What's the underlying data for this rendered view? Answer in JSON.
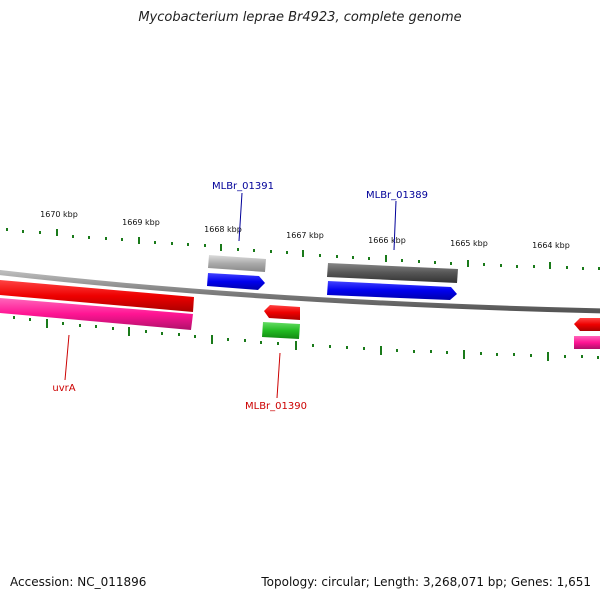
{
  "title": "Mycobacterium leprae Br4923, complete genome",
  "footer": {
    "accession": "Accession: NC_011896",
    "summary": "Topology: circular; Length: 3,268,071 bp; Genes: 1,651"
  },
  "ruler_labels": [
    "1670 kbp",
    "1669 kbp",
    "1668 kbp",
    "1667 kbp",
    "1666 kbp",
    "1665 kbp",
    "1664 kbp"
  ],
  "gene_labels": [
    {
      "name": "MLBr_01391",
      "color": "#000099"
    },
    {
      "name": "MLBr_01389",
      "color": "#000099"
    },
    {
      "name": "uvrA",
      "color": "#cc0000"
    },
    {
      "name": "MLBr_01390",
      "color": "#cc0000"
    }
  ],
  "colors": {
    "backbone": "#808080",
    "ticks": "#1a7a1a",
    "cds_forward": "#0000ee",
    "cds_reverse": "#ee0000",
    "gene_gray": "#aaaaaa",
    "gene_darkgray": "#555555",
    "gene_pink": "#ff1493",
    "gene_green": "#22bb22"
  }
}
